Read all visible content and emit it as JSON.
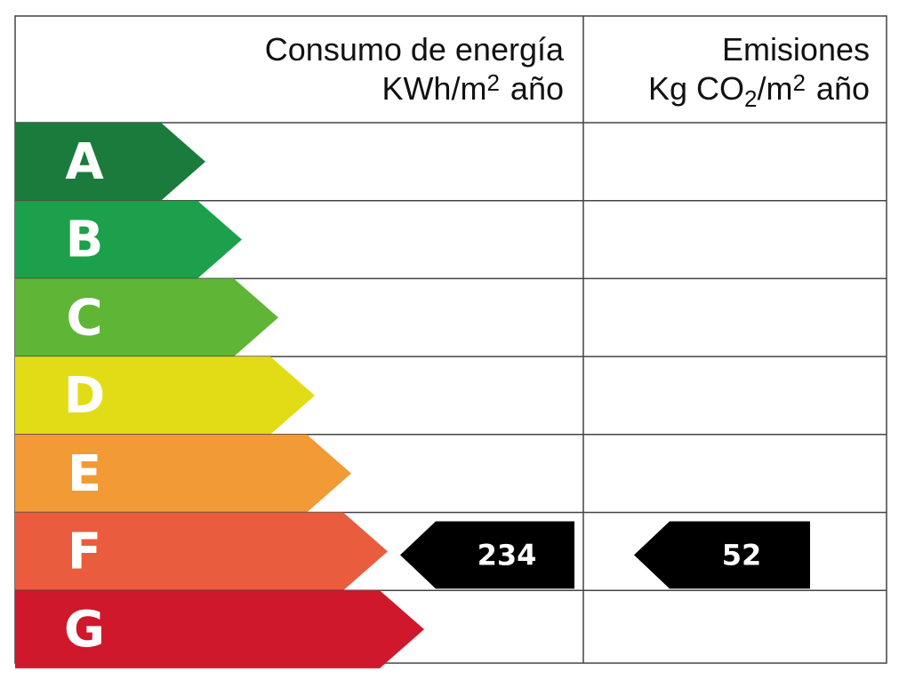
{
  "header": {
    "energy": {
      "title": "Consumo de energía",
      "unit": [
        {
          "text": "KWh/m"
        },
        {
          "text": "2",
          "sup": true
        },
        {
          "text": "año"
        }
      ]
    },
    "emissions": {
      "title": "Emisiones",
      "unit": [
        {
          "text": "Kg CO"
        },
        {
          "text": "2",
          "sub": true
        },
        {
          "text": "/m"
        },
        {
          "text": "2",
          "sup": true
        },
        {
          "text": "año"
        }
      ]
    }
  },
  "ratings": [
    {
      "letter": "A",
      "color": "#1b7b3d"
    },
    {
      "letter": "B",
      "color": "#1ca04b"
    },
    {
      "letter": "C",
      "color": "#5fb536"
    },
    {
      "letter": "D",
      "color": "#e2dc16"
    },
    {
      "letter": "E",
      "color": "#f29a35"
    },
    {
      "letter": "F",
      "color": "#ea5c3e"
    },
    {
      "letter": "G",
      "color": "#cf182b"
    }
  ],
  "energy_result": {
    "value": 234,
    "class": "F"
  },
  "emissions_result": {
    "value": 52,
    "class": "F"
  }
}
